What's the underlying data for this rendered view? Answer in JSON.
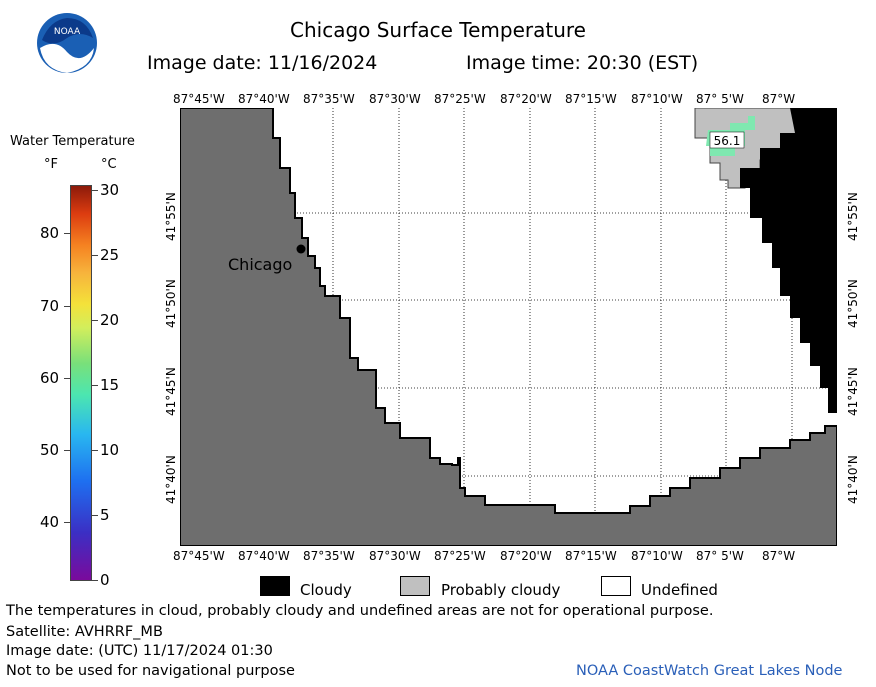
{
  "header": {
    "title": "Chicago Surface Temperature",
    "image_date": "Image date: 11/16/2024",
    "image_time": "Image time: 20:30 (EST)"
  },
  "logo": {
    "text": "NOAA",
    "icon": "noaa-logo-icon"
  },
  "axes": {
    "lon_top": [
      "87°45'W",
      "87°40'W",
      "87°35'W",
      "87°30'W",
      "87°25'W",
      "87°20'W",
      "87°15'W",
      "87°10'W",
      "87° 5'W",
      "87°W"
    ],
    "lon_bottom": [
      "87°45'W",
      "87°40'W",
      "87°35'W",
      "87°30'W",
      "87°25'W",
      "87°20'W",
      "87°15'W",
      "87°10'W",
      "87° 5'W",
      "87°W"
    ],
    "lat_left": [
      "41°55'N",
      "41°50'N",
      "41°45'N",
      "41°40'N"
    ],
    "lat_right": [
      "41°55'N",
      "41°50'N",
      "41°45'N",
      "41°40'N"
    ]
  },
  "map": {
    "city_label": "Chicago",
    "temp_label": "56.1",
    "colors": {
      "land": "#6e6e6e",
      "cloudy": "#000000",
      "probably_cloudy": "#c0c0c0",
      "undefined": "#ffffff",
      "warm_water": "#7fe8b0"
    }
  },
  "colorbar": {
    "title": "Water Temperature",
    "unit_f": "°F",
    "unit_c": "°C",
    "f_ticks": [
      "80",
      "70",
      "60",
      "50",
      "40"
    ],
    "c_ticks": [
      "30",
      "25",
      "20",
      "15",
      "10",
      "5",
      "0"
    ]
  },
  "legend": {
    "cloudy": "Cloudy",
    "probably_cloudy": "Probably cloudy",
    "undefined": "Undefined"
  },
  "footer": {
    "line1": "The temperatures in cloud, probably cloudy and undefined areas are not for operational purpose.",
    "line2": "Satellite: AVHRRF_MB",
    "line3": "Image date: (UTC) 11/17/2024  01:30",
    "line4": "Not to be used for navigational purpose",
    "credit": "NOAA CoastWatch Great Lakes Node"
  }
}
